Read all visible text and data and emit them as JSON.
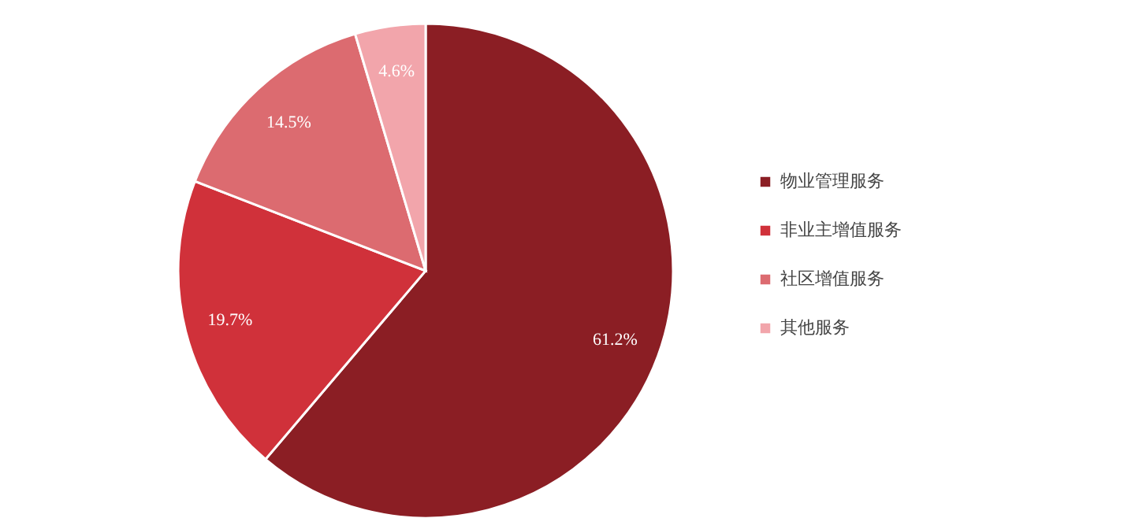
{
  "chart_data": {
    "type": "pie",
    "categories": [
      "物业管理服务",
      "非业主增值服务",
      "社区增值服务",
      "其他服务"
    ],
    "values": [
      61.2,
      19.7,
      14.5,
      4.6
    ],
    "colors": [
      "#8b1e24",
      "#d0313a",
      "#dc6b70",
      "#f2a5ab"
    ],
    "value_labels": [
      "61.2%",
      "19.7%",
      "14.5%",
      "4.6%"
    ],
    "legend": "right"
  }
}
